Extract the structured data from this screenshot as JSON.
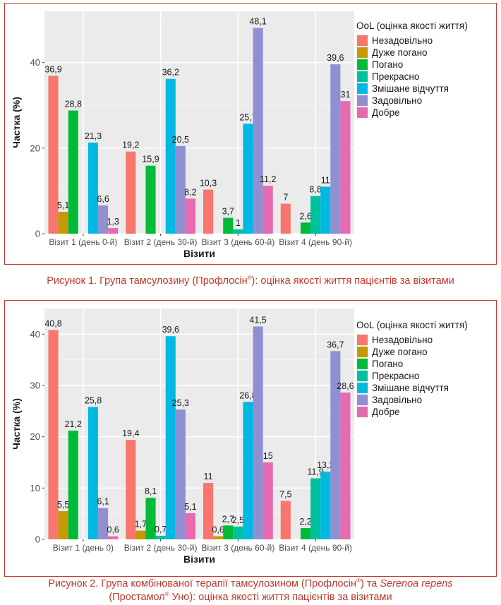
{
  "colors": {
    "border": "#c0392b",
    "caption": "#c0392b",
    "plot_bg": "#ebebeb",
    "grid": "#ffffff",
    "series": [
      "#f8766d",
      "#c49a00",
      "#00ba38",
      "#00c19f",
      "#00b9e3",
      "#8f8fd2",
      "#e66aaf"
    ]
  },
  "figures": [
    {
      "caption": {
        "text": "Рисунок 1.  Група тамсулозину (Профлосін®): оцінка якості життя пацієнтів за візитами",
        "line1": "Рисунок 1.  Група тамсулозину (Профлосін",
        "reg1": "®",
        "line1_end": "): оцінка якості життя пацієнтів за візитами"
      }
    },
    {
      "caption": {
        "text": "Рисунок 2.  Група комбінованої терапії тамсулозином (Профлосін®) та Serenoa repens (Простамол® Уно): оцінка якості життя пацієнтів за візитами",
        "part1": "Рисунок 2.  Група комбінованої терапії тамсулозином (Профлосін",
        "reg1": "®",
        "part2": ") та ",
        "italic": "Serenoa repens",
        "part3": "(Простамол",
        "reg2": "®",
        "part4": " Уно): оцінка якості життя пацієнтів за візитами"
      }
    }
  ],
  "chart_data": [
    {
      "type": "bar",
      "xlabel": "Візити",
      "ylabel": "Частка (%)",
      "ylim": [
        0,
        52
      ],
      "yticks": [
        0,
        20,
        40
      ],
      "grid": true,
      "legend_position": "right",
      "legend_title": "OoL (оцінка якості життя)",
      "categories": [
        "Візит 1 (день 0-й)",
        "Візит 2 (день 30-й)",
        "Візит 3 (день 60-й)",
        "Візит 4 (день 90-й)"
      ],
      "series": [
        {
          "name": "Незадовільно",
          "values": [
            36.9,
            19.2,
            10.3,
            7
          ],
          "labels": [
            "36,9",
            "19,2",
            "10,3",
            "7"
          ]
        },
        {
          "name": "Дуже погано",
          "values": [
            5.1,
            null,
            null,
            null
          ],
          "labels": [
            "5,1",
            "",
            "",
            ""
          ]
        },
        {
          "name": "Погано",
          "values": [
            28.8,
            15.9,
            3.7,
            2.6
          ],
          "labels": [
            "28,8",
            "15,9",
            "3,7",
            "2,6"
          ]
        },
        {
          "name": "Прекрасно",
          "values": [
            null,
            null,
            1,
            8.8
          ],
          "labels": [
            "",
            "",
            "1",
            "8,8"
          ]
        },
        {
          "name": "Змішане відчуття",
          "values": [
            21.3,
            36.2,
            25.7,
            11
          ],
          "labels": [
            "21,3",
            "36,2",
            "25,7",
            "11"
          ]
        },
        {
          "name": "Задовільно",
          "values": [
            6.6,
            20.5,
            48.1,
            39.6
          ],
          "labels": [
            "6,6",
            "20,5",
            "48,1",
            "39,6"
          ]
        },
        {
          "name": "Добре",
          "values": [
            1.3,
            8.2,
            11.2,
            31
          ],
          "labels": [
            "1,3",
            "8,2",
            "11,2",
            "31"
          ]
        }
      ]
    },
    {
      "type": "bar",
      "xlabel": "Візити",
      "ylabel": "Частка (%)",
      "ylim": [
        0,
        45
      ],
      "yticks": [
        0,
        10,
        20,
        30,
        40
      ],
      "grid": true,
      "legend_position": "right",
      "legend_title": "OoL (оцінка якості життя)",
      "categories": [
        "Візит 1 (день 0)",
        "Візит 2 (день 30-й)",
        "Візит 3 (день 60-й)",
        "Візит 4 (день 90-й)"
      ],
      "series": [
        {
          "name": "Незадовільно",
          "values": [
            40.8,
            19.4,
            11,
            7.5
          ],
          "labels": [
            "40,8",
            "19,4",
            "11",
            "7,5"
          ]
        },
        {
          "name": "Дуже погано",
          "values": [
            5.5,
            1.7,
            0.6,
            null
          ],
          "labels": [
            "5,5",
            "1,7",
            "0,6",
            ""
          ]
        },
        {
          "name": "Погано",
          "values": [
            21.2,
            8.1,
            2.7,
            2.2
          ],
          "labels": [
            "21,2",
            "8,1",
            "2,7",
            "2,2"
          ]
        },
        {
          "name": "Прекрасно",
          "values": [
            null,
            0.7,
            2.5,
            11.9
          ],
          "labels": [
            "",
            "0,7",
            "2,5",
            "11,9"
          ]
        },
        {
          "name": "Змішане відчуття",
          "values": [
            25.8,
            39.6,
            26.8,
            13.2
          ],
          "labels": [
            "25,8",
            "39,6",
            "26,8",
            "13,2"
          ]
        },
        {
          "name": "Задовільно",
          "values": [
            6.1,
            25.3,
            41.5,
            36.7
          ],
          "labels": [
            "6,1",
            "25,3",
            "41,5",
            "36,7"
          ]
        },
        {
          "name": "Добре",
          "values": [
            0.6,
            5.1,
            15,
            28.6
          ],
          "labels": [
            "0,6",
            "5,1",
            "15",
            "28,6"
          ]
        }
      ]
    }
  ]
}
